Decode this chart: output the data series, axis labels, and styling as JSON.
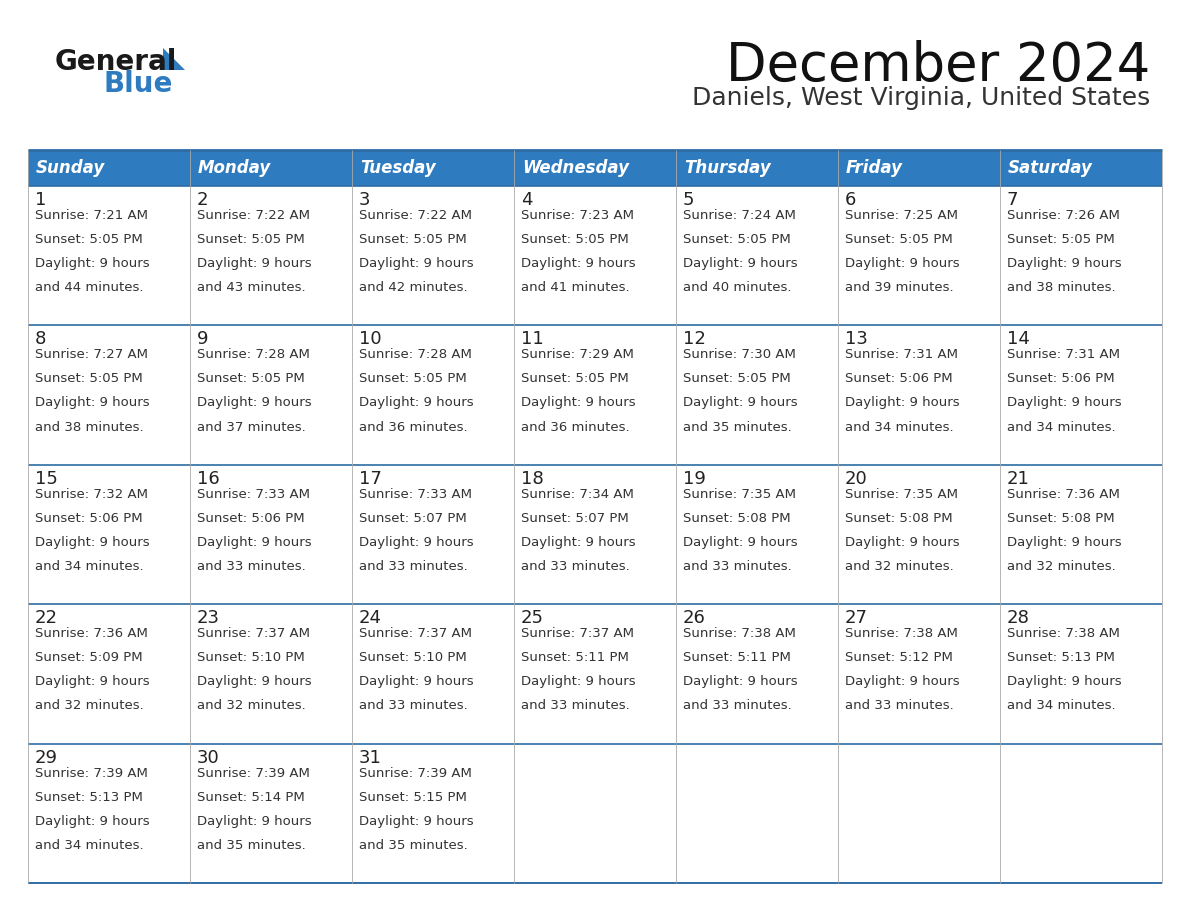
{
  "title": "December 2024",
  "subtitle": "Daniels, West Virginia, United States",
  "header_bg_color": "#2E7BBF",
  "header_text_color": "#FFFFFF",
  "cell_bg_color_odd": "#F0F4F8",
  "cell_bg_color_even": "#FFFFFF",
  "grid_line_color": "#2E6DA4",
  "text_color": "#333333",
  "day_number_color": "#222222",
  "days_of_week": [
    "Sunday",
    "Monday",
    "Tuesday",
    "Wednesday",
    "Thursday",
    "Friday",
    "Saturday"
  ],
  "calendar_data": [
    [
      {
        "day": 1,
        "sunrise": "7:21 AM",
        "sunset": "5:05 PM",
        "daylight_hours": 9,
        "daylight_minutes": 44
      },
      {
        "day": 2,
        "sunrise": "7:22 AM",
        "sunset": "5:05 PM",
        "daylight_hours": 9,
        "daylight_minutes": 43
      },
      {
        "day": 3,
        "sunrise": "7:22 AM",
        "sunset": "5:05 PM",
        "daylight_hours": 9,
        "daylight_minutes": 42
      },
      {
        "day": 4,
        "sunrise": "7:23 AM",
        "sunset": "5:05 PM",
        "daylight_hours": 9,
        "daylight_minutes": 41
      },
      {
        "day": 5,
        "sunrise": "7:24 AM",
        "sunset": "5:05 PM",
        "daylight_hours": 9,
        "daylight_minutes": 40
      },
      {
        "day": 6,
        "sunrise": "7:25 AM",
        "sunset": "5:05 PM",
        "daylight_hours": 9,
        "daylight_minutes": 39
      },
      {
        "day": 7,
        "sunrise": "7:26 AM",
        "sunset": "5:05 PM",
        "daylight_hours": 9,
        "daylight_minutes": 38
      }
    ],
    [
      {
        "day": 8,
        "sunrise": "7:27 AM",
        "sunset": "5:05 PM",
        "daylight_hours": 9,
        "daylight_minutes": 38
      },
      {
        "day": 9,
        "sunrise": "7:28 AM",
        "sunset": "5:05 PM",
        "daylight_hours": 9,
        "daylight_minutes": 37
      },
      {
        "day": 10,
        "sunrise": "7:28 AM",
        "sunset": "5:05 PM",
        "daylight_hours": 9,
        "daylight_minutes": 36
      },
      {
        "day": 11,
        "sunrise": "7:29 AM",
        "sunset": "5:05 PM",
        "daylight_hours": 9,
        "daylight_minutes": 36
      },
      {
        "day": 12,
        "sunrise": "7:30 AM",
        "sunset": "5:05 PM",
        "daylight_hours": 9,
        "daylight_minutes": 35
      },
      {
        "day": 13,
        "sunrise": "7:31 AM",
        "sunset": "5:06 PM",
        "daylight_hours": 9,
        "daylight_minutes": 34
      },
      {
        "day": 14,
        "sunrise": "7:31 AM",
        "sunset": "5:06 PM",
        "daylight_hours": 9,
        "daylight_minutes": 34
      }
    ],
    [
      {
        "day": 15,
        "sunrise": "7:32 AM",
        "sunset": "5:06 PM",
        "daylight_hours": 9,
        "daylight_minutes": 34
      },
      {
        "day": 16,
        "sunrise": "7:33 AM",
        "sunset": "5:06 PM",
        "daylight_hours": 9,
        "daylight_minutes": 33
      },
      {
        "day": 17,
        "sunrise": "7:33 AM",
        "sunset": "5:07 PM",
        "daylight_hours": 9,
        "daylight_minutes": 33
      },
      {
        "day": 18,
        "sunrise": "7:34 AM",
        "sunset": "5:07 PM",
        "daylight_hours": 9,
        "daylight_minutes": 33
      },
      {
        "day": 19,
        "sunrise": "7:35 AM",
        "sunset": "5:08 PM",
        "daylight_hours": 9,
        "daylight_minutes": 33
      },
      {
        "day": 20,
        "sunrise": "7:35 AM",
        "sunset": "5:08 PM",
        "daylight_hours": 9,
        "daylight_minutes": 32
      },
      {
        "day": 21,
        "sunrise": "7:36 AM",
        "sunset": "5:08 PM",
        "daylight_hours": 9,
        "daylight_minutes": 32
      }
    ],
    [
      {
        "day": 22,
        "sunrise": "7:36 AM",
        "sunset": "5:09 PM",
        "daylight_hours": 9,
        "daylight_minutes": 32
      },
      {
        "day": 23,
        "sunrise": "7:37 AM",
        "sunset": "5:10 PM",
        "daylight_hours": 9,
        "daylight_minutes": 32
      },
      {
        "day": 24,
        "sunrise": "7:37 AM",
        "sunset": "5:10 PM",
        "daylight_hours": 9,
        "daylight_minutes": 33
      },
      {
        "day": 25,
        "sunrise": "7:37 AM",
        "sunset": "5:11 PM",
        "daylight_hours": 9,
        "daylight_minutes": 33
      },
      {
        "day": 26,
        "sunrise": "7:38 AM",
        "sunset": "5:11 PM",
        "daylight_hours": 9,
        "daylight_minutes": 33
      },
      {
        "day": 27,
        "sunrise": "7:38 AM",
        "sunset": "5:12 PM",
        "daylight_hours": 9,
        "daylight_minutes": 33
      },
      {
        "day": 28,
        "sunrise": "7:38 AM",
        "sunset": "5:13 PM",
        "daylight_hours": 9,
        "daylight_minutes": 34
      }
    ],
    [
      {
        "day": 29,
        "sunrise": "7:39 AM",
        "sunset": "5:13 PM",
        "daylight_hours": 9,
        "daylight_minutes": 34
      },
      {
        "day": 30,
        "sunrise": "7:39 AM",
        "sunset": "5:14 PM",
        "daylight_hours": 9,
        "daylight_minutes": 35
      },
      {
        "day": 31,
        "sunrise": "7:39 AM",
        "sunset": "5:15 PM",
        "daylight_hours": 9,
        "daylight_minutes": 35
      },
      null,
      null,
      null,
      null
    ]
  ],
  "logo_color_general": "#1a1a1a",
  "logo_color_blue": "#2E7BBF",
  "logo_triangle_color": "#2E7BBF",
  "title_fontsize": 38,
  "subtitle_fontsize": 18,
  "header_fontsize": 12,
  "day_num_fontsize": 13,
  "cell_text_fontsize": 9.5
}
